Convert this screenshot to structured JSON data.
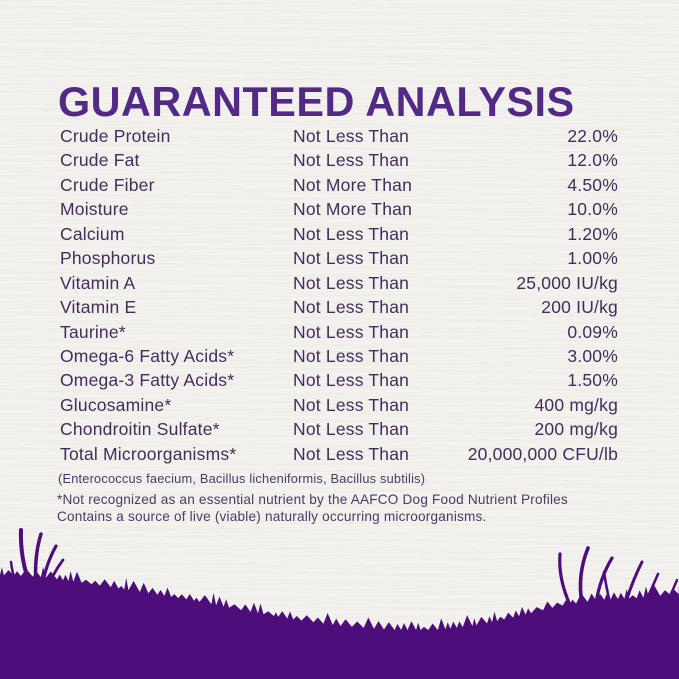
{
  "title": "GUARANTEED ANALYSIS",
  "colors": {
    "heading_purple": "#522a85",
    "body_text_purple": "#442c5c",
    "grass_purple": "#4d0e7c",
    "background": "#f6f5f1"
  },
  "table": {
    "rows": [
      {
        "name": "Crude Protein",
        "condition": "Not Less Than",
        "value": "22.0%"
      },
      {
        "name": "Crude Fat",
        "condition": "Not Less Than",
        "value": "12.0%"
      },
      {
        "name": "Crude Fiber",
        "condition": "Not More Than",
        "value": "4.50%"
      },
      {
        "name": "Moisture",
        "condition": "Not More Than",
        "value": "10.0%"
      },
      {
        "name": "Calcium",
        "condition": "Not Less Than",
        "value": "1.20%"
      },
      {
        "name": "Phosphorus",
        "condition": "Not Less Than",
        "value": "1.00%"
      },
      {
        "name": "Vitamin A",
        "condition": "Not Less Than",
        "value": "25,000 IU/kg"
      },
      {
        "name": "Vitamin E",
        "condition": "Not Less Than",
        "value": "200 IU/kg"
      },
      {
        "name": "Taurine*",
        "condition": "Not Less Than",
        "value": "0.09%"
      },
      {
        "name": "Omega-6 Fatty Acids*",
        "condition": "Not Less Than",
        "value": "3.00%"
      },
      {
        "name": "Omega-3 Fatty Acids*",
        "condition": "Not Less Than",
        "value": "1.50%"
      },
      {
        "name": "Glucosamine*",
        "condition": "Not Less Than",
        "value": "400 mg/kg"
      },
      {
        "name": "Chondroitin Sulfate*",
        "condition": "Not Less Than",
        "value": "200 mg/kg"
      },
      {
        "name": "Total Microorganisms*",
        "condition": "Not Less Than",
        "value": "20,000,000 CFU/lb"
      }
    ],
    "species_note": "(Enterococcus faecium, Bacillus licheniformis, Bacillus subtilis)"
  },
  "footnotes": {
    "line1": "*Not recognized as an essential nutrient by the AAFCO Dog Food Nutrient Profiles",
    "line2": "Contains a source of live (viable) naturally occurring microorganisms."
  }
}
